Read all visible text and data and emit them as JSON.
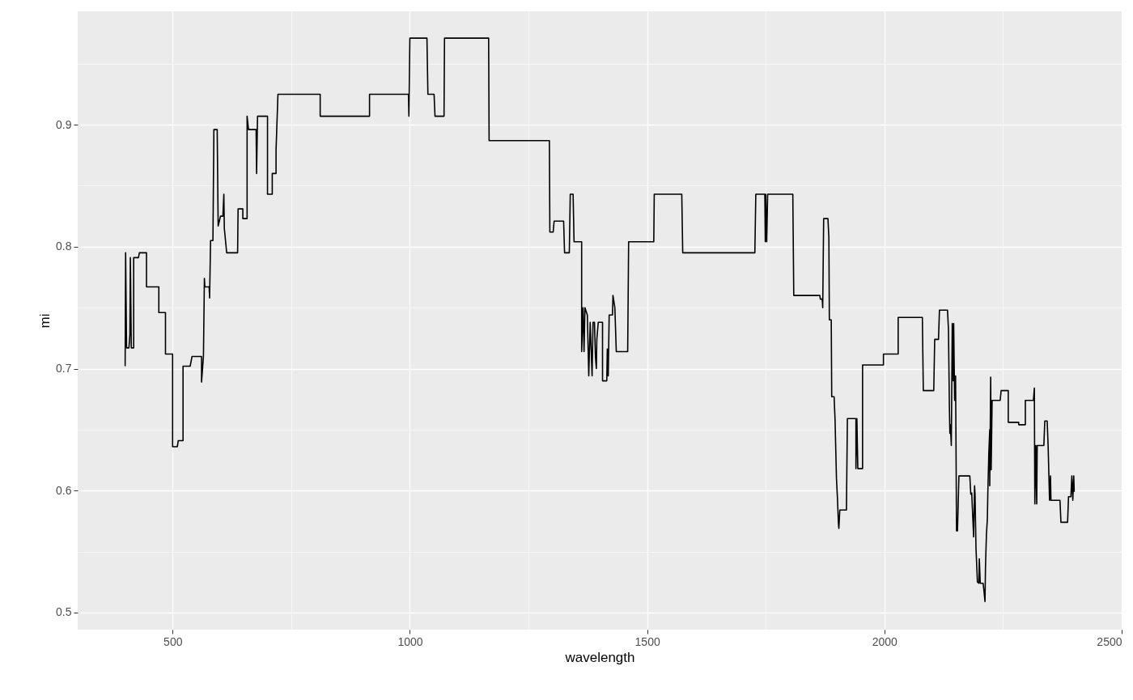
{
  "chart_data": {
    "type": "line",
    "xlabel": "wavelength",
    "ylabel": "mi",
    "xlim": [
      300,
      2500
    ],
    "ylim": [
      0.486,
      0.993
    ],
    "xticks": [
      500,
      {
        "value": 750,
        "label": null
      },
      1000,
      {
        "value": 1250,
        "label": null
      },
      1500,
      {
        "value": 1750,
        "label": null
      },
      2000,
      {
        "value": 2250,
        "label": null
      },
      2500
    ],
    "yticks": [
      0.5,
      {
        "value": 0.55,
        "label": null
      },
      0.6,
      {
        "value": 0.65,
        "label": null
      },
      0.7,
      {
        "value": 0.75,
        "label": null
      },
      0.8,
      {
        "value": 0.85,
        "label": null
      },
      0.9,
      {
        "value": 0.95,
        "label": null
      }
    ],
    "grid": true,
    "line_style": "solid",
    "marker": "none",
    "x": [
      400,
      401,
      403,
      408,
      410,
      411,
      413,
      418,
      418,
      428,
      430,
      445,
      445,
      471,
      471,
      485,
      485,
      500,
      500,
      510,
      512,
      522,
      522,
      537,
      541,
      561,
      561,
      565,
      567,
      568,
      577,
      578,
      580,
      585,
      587,
      594,
      596,
      601,
      606,
      608,
      609,
      614,
      637,
      638,
      648,
      648,
      657,
      657,
      660,
      676,
      677,
      679,
      700,
      700,
      710,
      710,
      718,
      718,
      722,
      811,
      811,
      915,
      915,
      997,
      998,
      1000,
      1036,
      1038,
      1051,
      1053,
      1072,
      1073,
      1166,
      1167,
      1294,
      1295,
      1302,
      1304,
      1324,
      1326,
      1336,
      1338,
      1344,
      1346,
      1362,
      1362,
      1365,
      1367,
      1369,
      1374,
      1377,
      1380,
      1384,
      1386,
      1389,
      1391,
      1393,
      1394,
      1397,
      1406,
      1406,
      1415,
      1416,
      1418,
      1420,
      1427,
      1428,
      1432,
      1435,
      1459,
      1461,
      1514,
      1515,
      1573,
      1575,
      1727,
      1729,
      1748,
      1749,
      1750,
      1752,
      1754,
      1807,
      1809,
      1864,
      1865,
      1869,
      1870,
      1872,
      1881,
      1883,
      1884,
      1888,
      1889,
      1894,
      1896,
      1899,
      1901,
      1903,
      1904,
      1906,
      1920,
      1922,
      1940,
      1940,
      1942,
      1944,
      1954,
      1954,
      1998,
      1998,
      2029,
      2029,
      2080,
      2082,
      2104,
      2106,
      2114,
      2116,
      2133,
      2135,
      2137,
      2138,
      2139,
      2141,
      2143,
      2145,
      2146,
      2148,
      2150,
      2152,
      2154,
      2157,
      2180,
      2182,
      2184,
      2188,
      2190,
      2191,
      2193,
      2196,
      2199,
      2200,
      2202,
      2208,
      2210,
      2212,
      2213,
      2215,
      2217,
      2218,
      2220,
      2222,
      2222,
      2224,
      2225,
      2227,
      2244,
      2246,
      2261,
      2261,
      2283,
      2283,
      2297,
      2297,
      2314,
      2316,
      2317,
      2319,
      2321,
      2322,
      2336,
      2338,
      2343,
      2345,
      2348,
      2350,
      2351,
      2370,
      2372,
      2386,
      2388,
      2393,
      2395,
      2397,
      2399,
      2400
    ],
    "series": [
      {
        "color": "#000000",
        "values": [
          0.702,
          0.795,
          0.717,
          0.717,
          0.728,
          0.791,
          0.717,
          0.717,
          0.791,
          0.791,
          0.795,
          0.795,
          0.767,
          0.767,
          0.746,
          0.746,
          0.712,
          0.712,
          0.636,
          0.636,
          0.641,
          0.641,
          0.702,
          0.702,
          0.71,
          0.71,
          0.689,
          0.71,
          0.774,
          0.767,
          0.767,
          0.758,
          0.805,
          0.805,
          0.896,
          0.896,
          0.817,
          0.825,
          0.825,
          0.843,
          0.815,
          0.795,
          0.795,
          0.831,
          0.831,
          0.823,
          0.823,
          0.907,
          0.896,
          0.896,
          0.86,
          0.907,
          0.907,
          0.843,
          0.843,
          0.86,
          0.86,
          0.879,
          0.925,
          0.925,
          0.907,
          0.907,
          0.925,
          0.925,
          0.907,
          0.971,
          0.971,
          0.925,
          0.925,
          0.907,
          0.907,
          0.971,
          0.971,
          0.887,
          0.887,
          0.812,
          0.812,
          0.821,
          0.821,
          0.795,
          0.795,
          0.843,
          0.843,
          0.804,
          0.804,
          0.714,
          0.75,
          0.714,
          0.75,
          0.744,
          0.694,
          0.738,
          0.694,
          0.738,
          0.738,
          0.71,
          0.7,
          0.724,
          0.738,
          0.738,
          0.69,
          0.69,
          0.716,
          0.694,
          0.744,
          0.744,
          0.76,
          0.75,
          0.714,
          0.714,
          0.804,
          0.804,
          0.843,
          0.843,
          0.795,
          0.795,
          0.843,
          0.843,
          0.804,
          0.843,
          0.804,
          0.843,
          0.843,
          0.76,
          0.76,
          0.757,
          0.757,
          0.75,
          0.823,
          0.823,
          0.807,
          0.74,
          0.74,
          0.677,
          0.677,
          0.658,
          0.61,
          0.594,
          0.574,
          0.569,
          0.584,
          0.584,
          0.659,
          0.659,
          0.618,
          0.659,
          0.618,
          0.618,
          0.703,
          0.703,
          0.712,
          0.712,
          0.742,
          0.742,
          0.682,
          0.682,
          0.724,
          0.724,
          0.748,
          0.748,
          0.732,
          0.667,
          0.647,
          0.654,
          0.637,
          0.737,
          0.69,
          0.737,
          0.674,
          0.694,
          0.567,
          0.567,
          0.612,
          0.612,
          0.597,
          0.598,
          0.562,
          0.604,
          0.597,
          0.553,
          0.525,
          0.524,
          0.544,
          0.524,
          0.524,
          0.517,
          0.509,
          0.537,
          0.564,
          0.577,
          0.599,
          0.63,
          0.65,
          0.604,
          0.693,
          0.617,
          0.674,
          0.674,
          0.682,
          0.682,
          0.656,
          0.656,
          0.654,
          0.654,
          0.674,
          0.674,
          0.684,
          0.589,
          0.637,
          0.589,
          0.637,
          0.637,
          0.657,
          0.657,
          0.637,
          0.592,
          0.612,
          0.592,
          0.592,
          0.574,
          0.574,
          0.595,
          0.595,
          0.612,
          0.592,
          0.612,
          0.599
        ]
      }
    ]
  }
}
